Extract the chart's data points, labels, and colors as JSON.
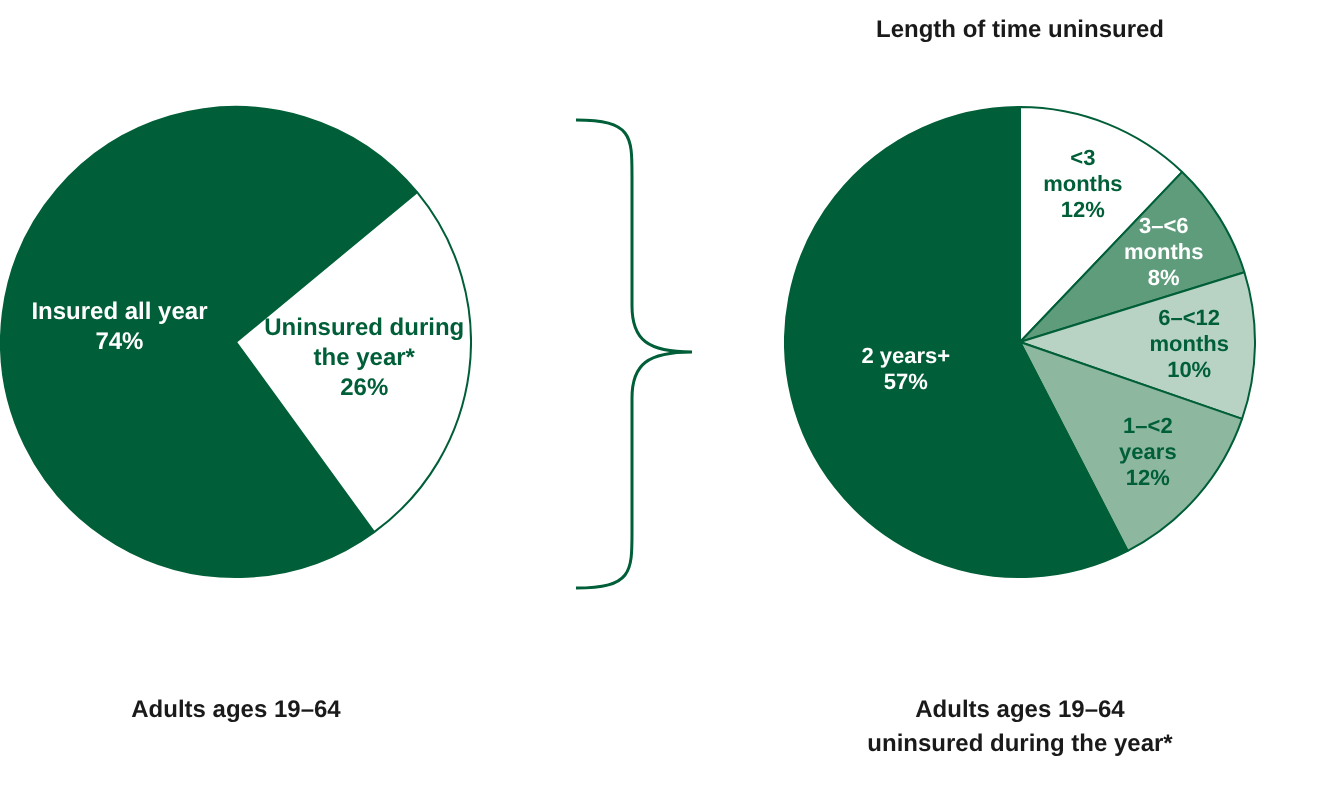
{
  "chart_data": [
    {
      "type": "pie",
      "categories": [
        "Insured all year",
        "Uninsured during the year*"
      ],
      "values": [
        74,
        26
      ],
      "colors": [
        "#005f38",
        "#ffffff"
      ],
      "value_labels": [
        "74%",
        "26%"
      ],
      "annotations": [
        "Adults ages 19–64"
      ]
    },
    {
      "type": "pie",
      "title": "Length of time uninsured",
      "categories": [
        "<3 months",
        "3–<6 months",
        "6–<12 months",
        "1–<2 years",
        "2 years+"
      ],
      "values": [
        12,
        8,
        10,
        12,
        57
      ],
      "colors": [
        "#ffffff",
        "#5e9c7c",
        "#b8d3c3",
        "#8db79f",
        "#005f38"
      ],
      "value_labels": [
        "12%",
        "8%",
        "10%",
        "12%",
        "57%"
      ],
      "annotations": [
        "Adults ages 19–64",
        "uninsured during the year*"
      ]
    }
  ]
}
